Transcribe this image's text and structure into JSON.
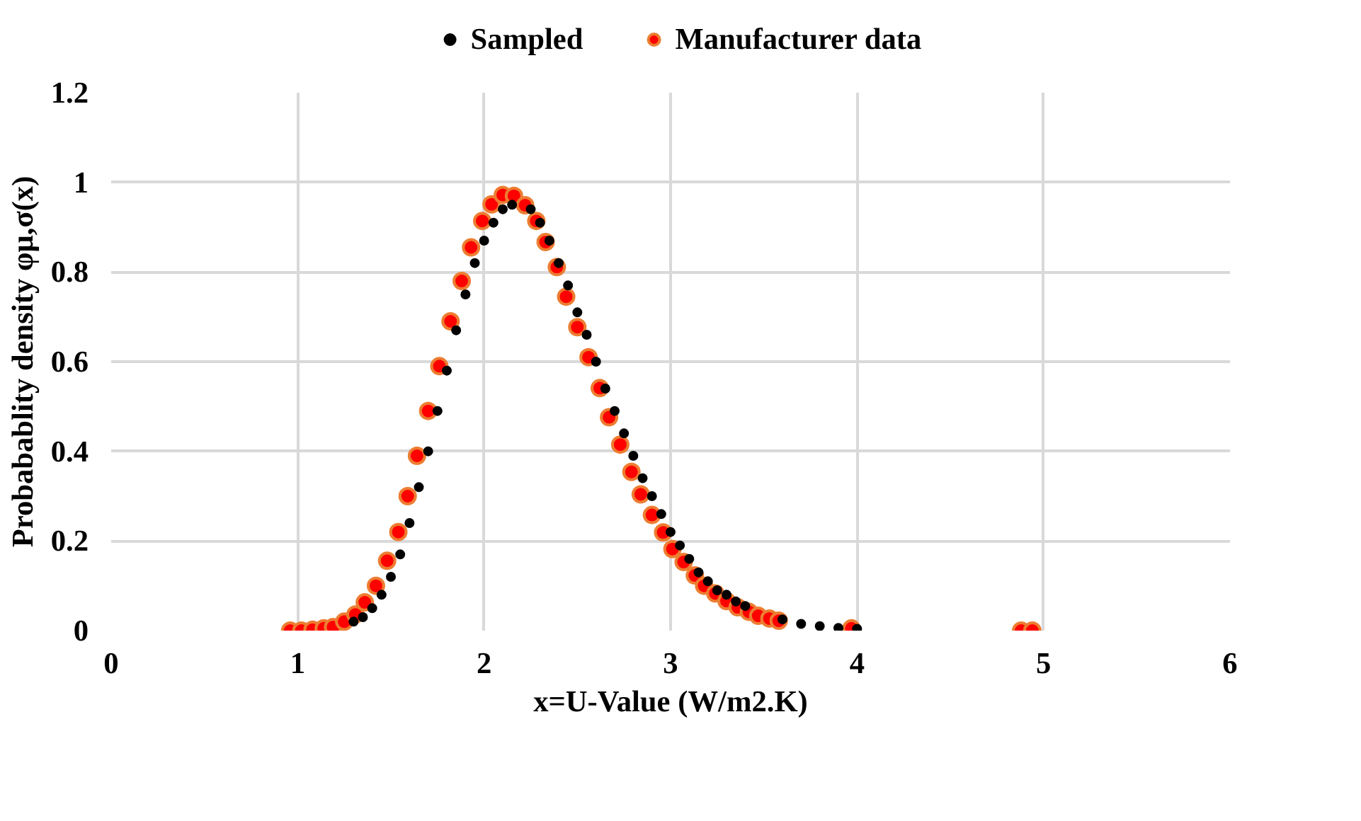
{
  "chart_data": {
    "type": "scatter",
    "xlabel": "x=U-Value (W/m2.K)",
    "ylabel": "Probabablity density φμ,σ(x)",
    "xlim": [
      0,
      6
    ],
    "xticks": [
      0,
      1,
      2,
      3,
      4,
      5,
      6
    ],
    "ylim": [
      0,
      1.2
    ],
    "yticks": [
      0,
      {
        "value": 0.2,
        "label": "0.2"
      },
      {
        "value": 0.4,
        "label": "0.4"
      },
      {
        "value": 0.6,
        "label": "0.6"
      },
      {
        "value": 0.8,
        "label": "0.8"
      },
      1,
      {
        "value": 1.2,
        "label": "1.2"
      }
    ],
    "grid": true,
    "legend": "top",
    "marker": "circle",
    "series": [
      {
        "name": "Sampled",
        "color": "#000000",
        "x": [
          1.3,
          1.35,
          1.4,
          1.45,
          1.5,
          1.55,
          1.6,
          1.65,
          1.7,
          1.75,
          1.8,
          1.85,
          1.9,
          1.95,
          2.0,
          2.05,
          2.1,
          2.15,
          2.25,
          2.3,
          2.35,
          2.4,
          2.45,
          2.5,
          2.55,
          2.6,
          2.65,
          2.7,
          2.75,
          2.8,
          2.85,
          2.9,
          2.95,
          3.0,
          3.05,
          3.1,
          3.15,
          3.2,
          3.25,
          3.3,
          3.35,
          3.4,
          3.6,
          3.7,
          3.8,
          3.9,
          4.0
        ],
        "values": [
          0.02,
          0.03,
          0.05,
          0.08,
          0.12,
          0.17,
          0.24,
          0.32,
          0.4,
          0.49,
          0.58,
          0.67,
          0.75,
          0.82,
          0.87,
          0.91,
          0.94,
          0.95,
          0.94,
          0.91,
          0.87,
          0.82,
          0.77,
          0.71,
          0.66,
          0.6,
          0.54,
          0.49,
          0.44,
          0.39,
          0.34,
          0.3,
          0.26,
          0.22,
          0.19,
          0.16,
          0.13,
          0.11,
          0.09,
          0.08,
          0.065,
          0.055,
          0.025,
          0.015,
          0.01,
          0.006,
          0.004
        ]
      },
      {
        "name": "Manufacturer data",
        "color": "#ff0000",
        "x": [
          0.96,
          1.02,
          1.08,
          1.14,
          1.19,
          1.25,
          1.31,
          1.36,
          1.42,
          1.48,
          1.54,
          1.59,
          1.64,
          1.7,
          1.76,
          1.82,
          1.88,
          1.93,
          1.99,
          2.04,
          2.1,
          2.16,
          2.22,
          2.28,
          2.33,
          2.39,
          2.44,
          2.5,
          2.56,
          2.62,
          2.67,
          2.73,
          2.79,
          2.84,
          2.9,
          2.96,
          3.01,
          3.07,
          3.13,
          3.18,
          3.24,
          3.3,
          3.36,
          3.42,
          3.47,
          3.53,
          3.58,
          3.97,
          4.88,
          4.94
        ],
        "values": [
          0,
          0,
          0.002,
          0.005,
          0.008,
          0.02,
          0.036,
          0.063,
          0.1,
          0.156,
          0.22,
          0.3,
          0.39,
          0.49,
          0.59,
          0.69,
          0.78,
          0.855,
          0.914,
          0.951,
          0.972,
          0.97,
          0.949,
          0.914,
          0.867,
          0.811,
          0.745,
          0.677,
          0.61,
          0.541,
          0.476,
          0.415,
          0.354,
          0.304,
          0.258,
          0.219,
          0.182,
          0.153,
          0.123,
          0.1,
          0.083,
          0.066,
          0.052,
          0.042,
          0.033,
          0.027,
          0.022,
          0.005,
          0,
          0
        ]
      }
    ]
  }
}
